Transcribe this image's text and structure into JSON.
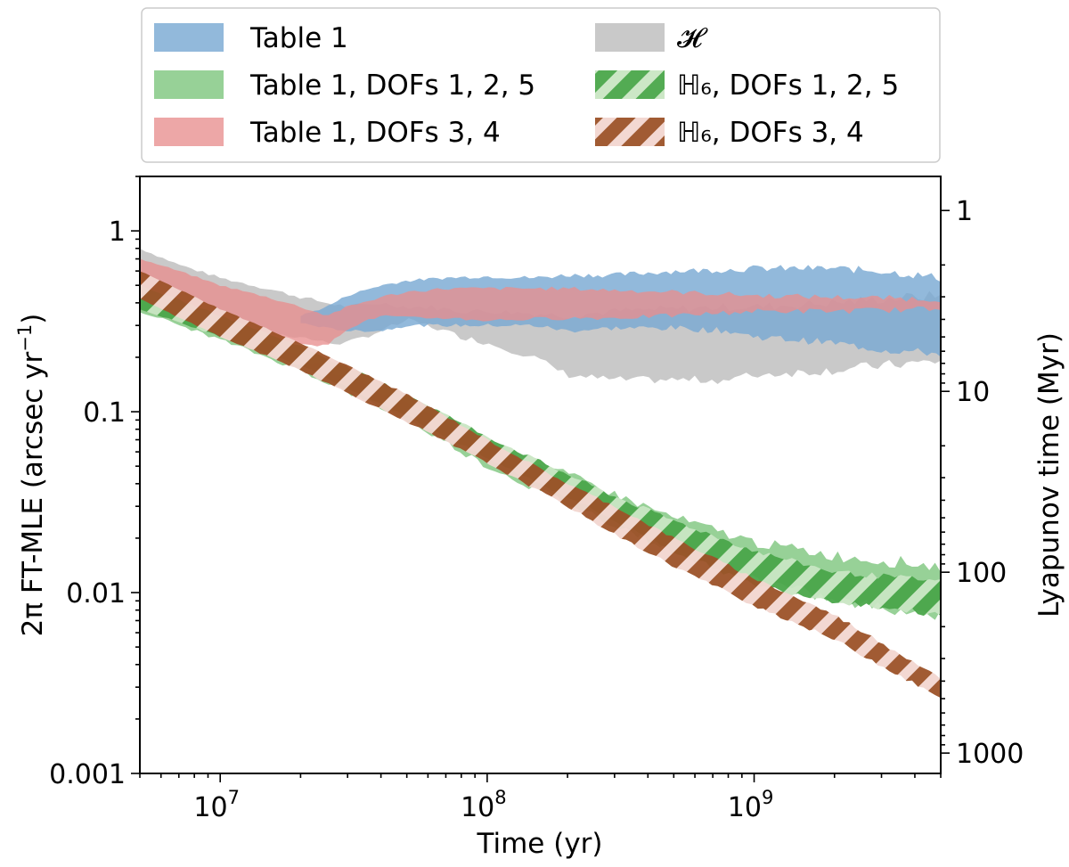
{
  "chart_data": {
    "type": "area",
    "title": "",
    "xlabel": "Time (yr)",
    "ylabel": "2π FT-MLE (arcsec yr⁻¹)",
    "ylabel_right": "Lyapunov time (Myr)",
    "xscale": "log",
    "yscale": "log",
    "xlim": [
      5000000,
      5000000000
    ],
    "ylim": [
      0.001,
      2
    ],
    "x_ticks": [
      {
        "value": 10000000,
        "mantissa": "10",
        "exp": "7"
      },
      {
        "value": 100000000,
        "mantissa": "10",
        "exp": "8"
      },
      {
        "value": 1000000000,
        "mantissa": "10",
        "exp": "9"
      }
    ],
    "y_ticks": [
      {
        "value": 1,
        "label": "1"
      },
      {
        "value": 0.1,
        "label": "0.1"
      },
      {
        "value": 0.01,
        "label": "0.01"
      },
      {
        "value": 0.001,
        "label": "0.001"
      }
    ],
    "right_ticks": [
      {
        "myr": 1,
        "label": "1"
      },
      {
        "myr": 10,
        "label": "10"
      },
      {
        "myr": 100,
        "label": "100"
      },
      {
        "myr": 1000,
        "label": "1000"
      }
    ],
    "legend": {
      "placement": "top, outside plot",
      "entries": [
        {
          "key": "table1",
          "label": "Table 1",
          "style": "fill"
        },
        {
          "key": "hcal",
          "label": "𝓗",
          "style": "fill"
        },
        {
          "key": "table1_125",
          "label": "Table 1, DOFs 1, 2, 5",
          "style": "fill"
        },
        {
          "key": "h6_125",
          "label": "ℍ₆, DOFs 1, 2, 5",
          "style": "hatch"
        },
        {
          "key": "table1_34",
          "label": "Table 1, DOFs 3, 4",
          "style": "fill"
        },
        {
          "key": "h6_34",
          "label": "ℍ₆, DOFs 3, 4",
          "style": "hatch"
        }
      ]
    },
    "series": [
      {
        "key": "hcal",
        "name": "𝓗",
        "color": "#b4b4b4",
        "opacity": 0.72,
        "x": [
          5000000,
          7000000,
          10000000,
          15000000,
          20000000,
          25000000,
          30000000,
          40000000,
          50000000,
          60000000,
          80000000,
          100000000,
          150000000,
          200000000,
          300000000,
          500000000,
          800000000,
          1000000000,
          2000000000,
          3000000000,
          5000000000
        ],
        "low": [
          0.42,
          0.37,
          0.31,
          0.27,
          0.26,
          0.24,
          0.24,
          0.28,
          0.32,
          0.3,
          0.26,
          0.24,
          0.2,
          0.16,
          0.15,
          0.15,
          0.15,
          0.16,
          0.17,
          0.18,
          0.19
        ],
        "high": [
          0.8,
          0.65,
          0.55,
          0.48,
          0.43,
          0.4,
          0.38,
          0.4,
          0.38,
          0.38,
          0.36,
          0.36,
          0.35,
          0.34,
          0.36,
          0.37,
          0.38,
          0.38,
          0.4,
          0.42,
          0.44
        ]
      },
      {
        "key": "table1",
        "name": "Table 1",
        "color": "#7aa9d3",
        "opacity": 0.82,
        "x": [
          20000000,
          25000000,
          30000000,
          40000000,
          50000000,
          70000000,
          100000000,
          150000000,
          200000000,
          300000000,
          500000000,
          800000000,
          1000000000,
          2000000000,
          3000000000,
          5000000000
        ],
        "low": [
          0.31,
          0.29,
          0.28,
          0.28,
          0.3,
          0.3,
          0.3,
          0.3,
          0.28,
          0.29,
          0.29,
          0.28,
          0.26,
          0.24,
          0.22,
          0.21
        ],
        "high": [
          0.34,
          0.38,
          0.44,
          0.5,
          0.53,
          0.55,
          0.56,
          0.55,
          0.57,
          0.57,
          0.6,
          0.61,
          0.62,
          0.62,
          0.6,
          0.55
        ]
      },
      {
        "key": "table1_34",
        "name": "Table 1, DOFs 3, 4",
        "color": "#e88e8e",
        "opacity": 0.78,
        "x": [
          5000000,
          7000000,
          10000000,
          15000000,
          20000000,
          25000000,
          30000000,
          40000000,
          50000000,
          70000000,
          100000000,
          200000000,
          300000000,
          500000000,
          1000000000,
          2000000000,
          5000000000
        ],
        "low": [
          0.36,
          0.31,
          0.27,
          0.25,
          0.24,
          0.23,
          0.29,
          0.34,
          0.33,
          0.33,
          0.32,
          0.33,
          0.33,
          0.34,
          0.36,
          0.36,
          0.37
        ],
        "high": [
          0.7,
          0.6,
          0.5,
          0.43,
          0.38,
          0.34,
          0.38,
          0.43,
          0.46,
          0.48,
          0.48,
          0.48,
          0.47,
          0.46,
          0.44,
          0.43,
          0.42
        ]
      },
      {
        "key": "table1_125",
        "name": "Table 1, DOFs 1, 2, 5",
        "color": "#8ccc8c",
        "opacity": 0.9,
        "x": [
          5000000,
          10000000,
          20000000,
          50000000,
          100000000,
          200000000,
          300000000,
          500000000,
          1000000000,
          2000000000,
          5000000000
        ],
        "low": [
          0.36,
          0.25,
          0.17,
          0.09,
          0.05,
          0.031,
          0.024,
          0.017,
          0.012,
          0.009,
          0.0075
        ],
        "high": [
          0.42,
          0.29,
          0.2,
          0.11,
          0.065,
          0.045,
          0.035,
          0.026,
          0.019,
          0.016,
          0.014
        ]
      },
      {
        "key": "h6_125",
        "name": "ℍ₆, DOFs 1, 2, 5",
        "color": "#4aa64a",
        "stripe_color": "#c9e6c3",
        "opacity": 0.95,
        "x": [
          5000000,
          10000000,
          20000000,
          50000000,
          100000000,
          200000000,
          300000000,
          500000000,
          1000000000,
          2000000000,
          5000000000
        ],
        "low": [
          0.37,
          0.26,
          0.18,
          0.095,
          0.055,
          0.034,
          0.025,
          0.017,
          0.011,
          0.009,
          0.0075
        ],
        "high": [
          0.5,
          0.34,
          0.23,
          0.125,
          0.073,
          0.045,
          0.034,
          0.025,
          0.017,
          0.013,
          0.0115
        ]
      },
      {
        "key": "h6_34",
        "name": "ℍ₆, DOFs 3, 4",
        "color": "#9c5228",
        "stripe_color": "#f2d6d0",
        "opacity": 0.95,
        "x": [
          5000000,
          10000000,
          20000000,
          50000000,
          100000000,
          200000000,
          300000000,
          500000000,
          1000000000,
          2000000000,
          5000000000
        ],
        "low": [
          0.42,
          0.26,
          0.17,
          0.088,
          0.052,
          0.03,
          0.021,
          0.014,
          0.0085,
          0.0055,
          0.0026
        ],
        "high": [
          0.6,
          0.37,
          0.24,
          0.125,
          0.07,
          0.04,
          0.03,
          0.02,
          0.012,
          0.0075,
          0.0034
        ]
      }
    ]
  }
}
